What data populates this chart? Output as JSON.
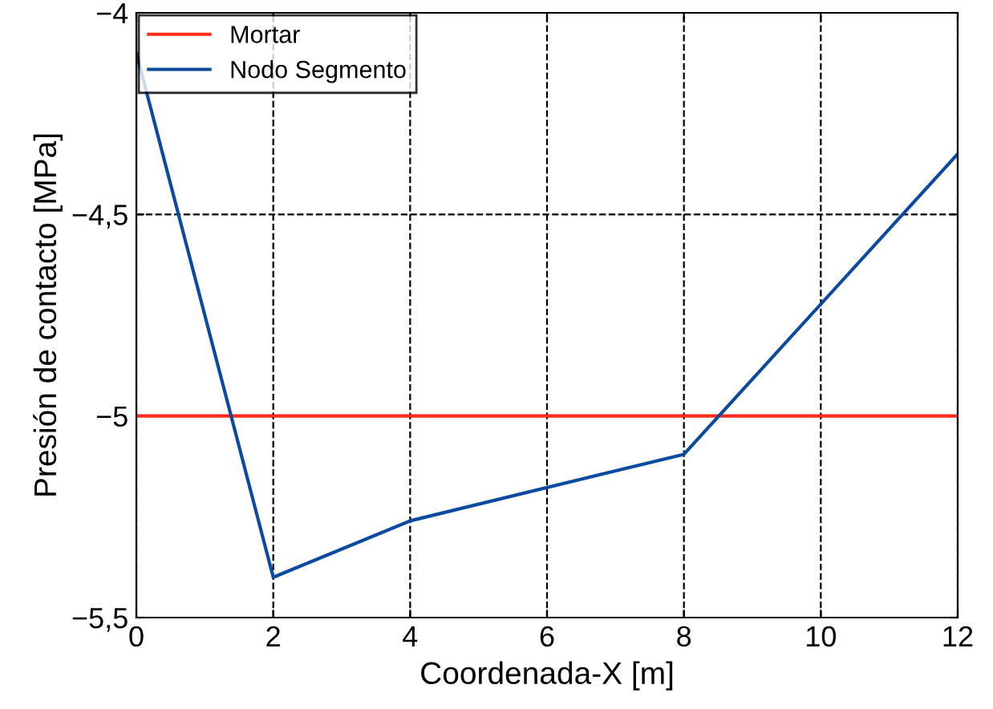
{
  "chart_data": {
    "type": "line",
    "xlabel": "Coordenada-X [m]",
    "ylabel": "Presión de contacto [MPa]",
    "xlim": [
      0,
      12
    ],
    "xticks": [
      0,
      2,
      4,
      6,
      8,
      10,
      12
    ],
    "ylim": [
      -5.5,
      -4
    ],
    "yticks": [
      {
        "value": -5.5,
        "label": "−5,5"
      },
      {
        "value": -5,
        "label": "−5"
      },
      {
        "value": -4.5,
        "label": "−4,5"
      },
      {
        "value": -4,
        "label": "−4"
      }
    ],
    "grid": true,
    "legend": "top left",
    "line_style": "solid",
    "series": [
      {
        "name": "Mortar",
        "color": "#ff2a1a",
        "x": [
          0,
          12
        ],
        "values": [
          -5,
          -5
        ]
      },
      {
        "name": "Nodo Segmento",
        "color": "#0a4aa0",
        "x": [
          0,
          2,
          4,
          8,
          12
        ],
        "values": [
          -4.1,
          -5.4,
          -5.26,
          -5.095,
          -4.35
        ]
      }
    ]
  }
}
